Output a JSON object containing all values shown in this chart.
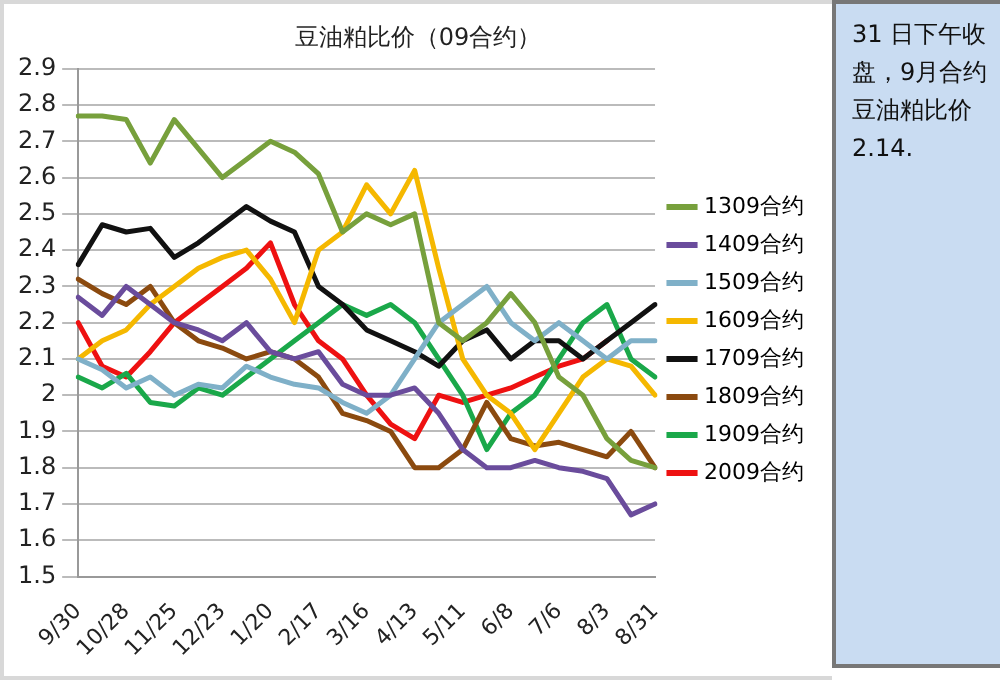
{
  "chart_data": {
    "type": "line",
    "title": "豆油粕比价（09合约）",
    "categories": [
      "9/30",
      null,
      "10/28",
      null,
      "11/25",
      null,
      "12/23",
      null,
      "1/20",
      null,
      "2/17",
      null,
      "3/16",
      null,
      "4/13",
      null,
      "5/11",
      null,
      "6/8",
      null,
      "7/6",
      null,
      "8/3",
      null,
      "8/31"
    ],
    "series": [
      {
        "name": "1309合约",
        "color": "#77a03c",
        "values": [
          2.77,
          2.77,
          2.76,
          2.64,
          2.76,
          2.68,
          2.6,
          2.65,
          2.7,
          2.67,
          2.61,
          2.45,
          2.5,
          2.47,
          2.5,
          2.2,
          2.15,
          2.2,
          2.28,
          2.2,
          2.05,
          2.0,
          1.88,
          1.82,
          1.8
        ]
      },
      {
        "name": "1409合约",
        "color": "#6a4c9c",
        "values": [
          2.27,
          2.22,
          2.3,
          2.25,
          2.2,
          2.18,
          2.15,
          2.2,
          2.12,
          2.1,
          2.12,
          2.03,
          2.0,
          2.0,
          2.02,
          1.95,
          1.85,
          1.8,
          1.8,
          1.82,
          1.8,
          1.79,
          1.77,
          1.67,
          1.7
        ]
      },
      {
        "name": "1509合约",
        "color": "#7fb0c8",
        "values": [
          2.1,
          2.07,
          2.02,
          2.05,
          2.0,
          2.03,
          2.02,
          2.08,
          2.05,
          2.03,
          2.02,
          1.98,
          1.95,
          2.0,
          2.1,
          2.2,
          2.25,
          2.3,
          2.2,
          2.15,
          2.2,
          2.15,
          2.1,
          2.15,
          2.15
        ]
      },
      {
        "name": "1609合约",
        "color": "#f5b800",
        "values": [
          2.1,
          2.15,
          2.18,
          2.25,
          2.3,
          2.35,
          2.38,
          2.4,
          2.32,
          2.2,
          2.4,
          2.45,
          2.58,
          2.5,
          2.62,
          2.35,
          2.1,
          2.0,
          1.95,
          1.85,
          1.95,
          2.05,
          2.1,
          2.08,
          2.0
        ]
      },
      {
        "name": "1709合约",
        "color": "#111111",
        "values": [
          2.36,
          2.47,
          2.45,
          2.46,
          2.38,
          2.42,
          2.47,
          2.52,
          2.48,
          2.45,
          2.3,
          2.25,
          2.18,
          2.15,
          2.12,
          2.08,
          2.15,
          2.18,
          2.1,
          2.15,
          2.15,
          2.1,
          2.15,
          2.2,
          2.25
        ]
      },
      {
        "name": "1809合约",
        "color": "#8b4a0f",
        "values": [
          2.32,
          2.28,
          2.25,
          2.3,
          2.2,
          2.15,
          2.13,
          2.1,
          2.12,
          2.1,
          2.05,
          1.95,
          1.93,
          1.9,
          1.8,
          1.8,
          1.85,
          1.98,
          1.88,
          1.86,
          1.87,
          1.85,
          1.83,
          1.9,
          1.8
        ]
      },
      {
        "name": "1909合约",
        "color": "#1aa84a",
        "values": [
          2.05,
          2.02,
          2.06,
          1.98,
          1.97,
          2.02,
          2.0,
          2.05,
          2.1,
          2.15,
          2.2,
          2.25,
          2.22,
          2.25,
          2.2,
          2.1,
          2.0,
          1.85,
          1.95,
          2.0,
          2.1,
          2.2,
          2.25,
          2.1,
          2.05
        ]
      },
      {
        "name": "2009合约",
        "color": "#ee1111",
        "values": [
          2.2,
          2.08,
          2.05,
          2.12,
          2.2,
          2.25,
          2.3,
          2.35,
          2.42,
          2.25,
          2.15,
          2.1,
          2.0,
          1.92,
          1.88,
          2.0,
          1.98,
          2.0,
          2.02,
          2.05,
          2.08,
          2.1,
          2.15,
          null,
          null
        ]
      }
    ],
    "ylim": [
      1.5,
      2.9
    ],
    "yticks": [
      1.5,
      1.6,
      1.7,
      1.8,
      1.9,
      2,
      2.1,
      2.2,
      2.3,
      2.4,
      2.5,
      2.6,
      2.7,
      2.8,
      2.9
    ],
    "grid": "y",
    "legend": "right",
    "marker": "none",
    "line_style": "solid",
    "annotations": [
      "31 日下午收盘，9月合约豆油粕比价2.14."
    ]
  }
}
